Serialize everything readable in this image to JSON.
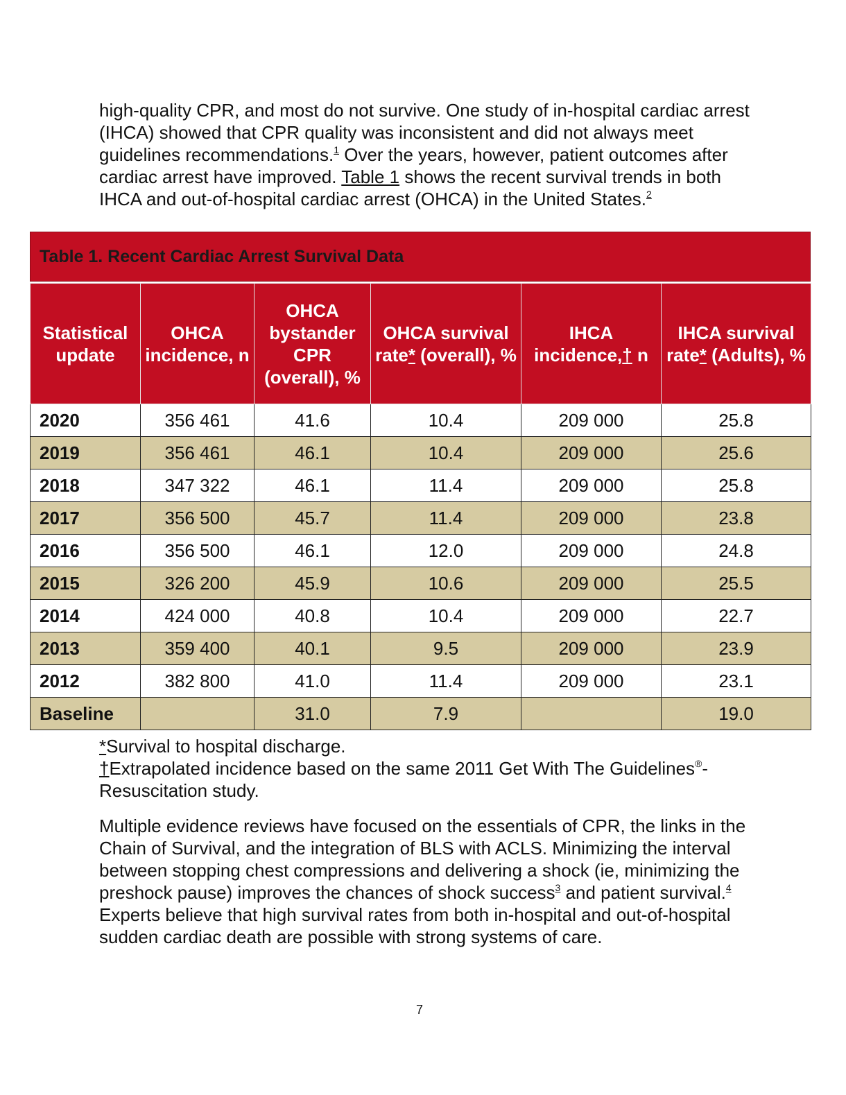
{
  "intro": {
    "part1": "high-quality CPR, and most do not survive. One study of in-hospital cardiac arrest (IHCA) showed that CPR quality was inconsistent and did not always meet guidelines recommendations.",
    "ref1": "1",
    "part2": " Over the years, however, patient outcomes after cardiac arrest have improved. ",
    "table_link": "Table 1",
    "part3": " shows the recent survival trends in both IHCA and out-of-hospital cardiac arrest (OHCA) in the United States.",
    "ref2": "2"
  },
  "table": {
    "caption": "Table 1. Recent Cardiac Arrest Survival Data",
    "headers": {
      "h0": "Statistical update",
      "h1": "OHCA incidence, n",
      "h2": "OHCA bystander CPR (overall), %",
      "h3a": "OHCA survival rate",
      "h3mark": "*",
      "h3b": " (overall), %",
      "h4a": "IHCA incidence,",
      "h4mark": "†",
      "h4b": " n",
      "h5a": "IHCA survival rate",
      "h5mark": "*",
      "h5b": " (Adults), %"
    },
    "rows": [
      {
        "year": "2020",
        "ohca_incidence": "356 461",
        "bystander_cpr": "41.6",
        "ohca_survival": "10.4",
        "ihca_incidence": "209 000",
        "ihca_survival": "25.8"
      },
      {
        "year": "2019",
        "ohca_incidence": "356 461",
        "bystander_cpr": "46.1",
        "ohca_survival": "10.4",
        "ihca_incidence": "209 000",
        "ihca_survival": "25.6"
      },
      {
        "year": "2018",
        "ohca_incidence": "347 322",
        "bystander_cpr": "46.1",
        "ohca_survival": "11.4",
        "ihca_incidence": "209 000",
        "ihca_survival": "25.8"
      },
      {
        "year": "2017",
        "ohca_incidence": "356 500",
        "bystander_cpr": "45.7",
        "ohca_survival": "11.4",
        "ihca_incidence": "209 000",
        "ihca_survival": "23.8"
      },
      {
        "year": "2016",
        "ohca_incidence": "356 500",
        "bystander_cpr": "46.1",
        "ohca_survival": "12.0",
        "ihca_incidence": "209 000",
        "ihca_survival": "24.8"
      },
      {
        "year": "2015",
        "ohca_incidence": "326 200",
        "bystander_cpr": "45.9",
        "ohca_survival": "10.6",
        "ihca_incidence": "209 000",
        "ihca_survival": "25.5"
      },
      {
        "year": "2014",
        "ohca_incidence": "424 000",
        "bystander_cpr": "40.8",
        "ohca_survival": "10.4",
        "ihca_incidence": "209 000",
        "ihca_survival": "22.7"
      },
      {
        "year": "2013",
        "ohca_incidence": "359 400",
        "bystander_cpr": "40.1",
        "ohca_survival": "9.5",
        "ihca_incidence": "209 000",
        "ihca_survival": "23.9"
      },
      {
        "year": "2012",
        "ohca_incidence": "382 800",
        "bystander_cpr": "41.0",
        "ohca_survival": "11.4",
        "ihca_incidence": "209 000",
        "ihca_survival": "23.1"
      },
      {
        "year": "Baseline",
        "ohca_incidence": "",
        "bystander_cpr": "31.0",
        "ohca_survival": "7.9",
        "ihca_incidence": "",
        "ihca_survival": "19.0"
      }
    ]
  },
  "footnotes": {
    "f1_mark": "*",
    "f1_text": "Survival to hospital discharge.",
    "f2_mark": "†",
    "f2_text_a": "Extrapolated incidence based on the same 2011 Get With The Guidelines",
    "f2_reg": "®",
    "f2_text_b": "-Resuscitation study."
  },
  "body2": {
    "part1": "Multiple evidence reviews have focused on the essentials of CPR, the links in the Chain of Survival, and the integration of BLS with ACLS. Minimizing the interval between stopping chest compressions and delivering a shock (ie, minimizing the preshock pause) improves the chances of shock success",
    "ref3": "3",
    "part2": " and patient survival.",
    "ref4": "4",
    "part3": " Experts believe that high survival rates from both in-hospital and out-of-hospital sudden cardiac death are possible with strong systems of care."
  },
  "page_number": "7"
}
